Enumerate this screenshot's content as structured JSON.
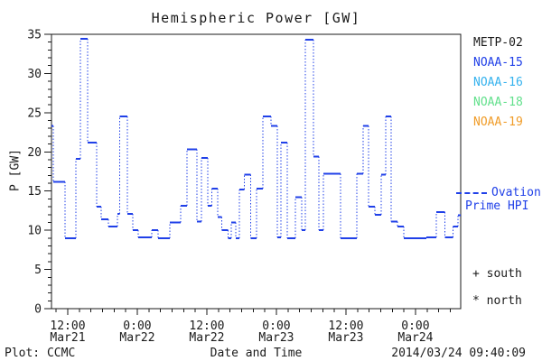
{
  "title": "Hemispheric Power [GW]",
  "footer": {
    "left": "Plot: CCMC",
    "right": "2014/03/24 09:40:09"
  },
  "legend": {
    "satellites": [
      {
        "label": "METP-02",
        "color": "#1a1a1a"
      },
      {
        "label": "NOAA-15",
        "color": "#2040e8"
      },
      {
        "label": "NOAA-16",
        "color": "#35b2ee"
      },
      {
        "label": "NOAA-18",
        "color": "#62e08c"
      },
      {
        "label": "NOAA-19",
        "color": "#f09c28"
      }
    ],
    "line_sample": {
      "label": "Ovation Prime HPI",
      "display_line1": "Ovation",
      "display_line2": "Prime HPI",
      "color": "#2040e8"
    },
    "markers": [
      {
        "symbol": "+",
        "label": "south"
      },
      {
        "symbol": "*",
        "label": "north"
      }
    ]
  },
  "chart_data": {
    "type": "line",
    "subtype": "step",
    "title": "Hemispheric Power [GW]",
    "xlabel": "Date and Time",
    "ylabel": "P [GW]",
    "grid": false,
    "legend_position": "right-outside",
    "ylim": [
      0,
      35
    ],
    "y_major_ticks": [
      0,
      5,
      10,
      15,
      20,
      25,
      30,
      35
    ],
    "y_minor_step": 1,
    "x_unit": "hours from 2014-03-21 00:00",
    "xlim_hours": [
      9.2,
      79.8
    ],
    "x_minor_step_hours": 2,
    "x_major_ticks": [
      {
        "hours": 12,
        "time": "12:00",
        "date": "Mar21"
      },
      {
        "hours": 24,
        "time": "0:00",
        "date": "Mar22"
      },
      {
        "hours": 36,
        "time": "12:00",
        "date": "Mar22"
      },
      {
        "hours": 48,
        "time": "0:00",
        "date": "Mar23"
      },
      {
        "hours": 60,
        "time": "12:00",
        "date": "Mar23"
      },
      {
        "hours": 72,
        "time": "0:00",
        "date": "Mar24"
      }
    ],
    "series": [
      {
        "name": "Ovation Prime HPI",
        "color": "#2040e8",
        "line_style": "solid horizontal steps, dotted vertical connectors",
        "points": [
          [
            9.2,
            23.3
          ],
          [
            9.5,
            16.2
          ],
          [
            11.5,
            9.0
          ],
          [
            13.4,
            19.1
          ],
          [
            14.2,
            34.4
          ],
          [
            15.4,
            21.2
          ],
          [
            17.0,
            13.0
          ],
          [
            17.8,
            11.4
          ],
          [
            19.0,
            10.5
          ],
          [
            20.6,
            12.1
          ],
          [
            21.0,
            24.5
          ],
          [
            22.3,
            12.1
          ],
          [
            23.2,
            10.0
          ],
          [
            24.2,
            9.1
          ],
          [
            26.5,
            10.0
          ],
          [
            27.6,
            9.0
          ],
          [
            29.6,
            11.0
          ],
          [
            31.5,
            13.1
          ],
          [
            32.6,
            20.3
          ],
          [
            34.3,
            11.1
          ],
          [
            35.1,
            19.2
          ],
          [
            36.2,
            13.1
          ],
          [
            36.9,
            15.3
          ],
          [
            37.9,
            11.7
          ],
          [
            38.6,
            10.0
          ],
          [
            39.7,
            9.0
          ],
          [
            40.2,
            11.0
          ],
          [
            41.0,
            9.0
          ],
          [
            41.6,
            15.2
          ],
          [
            42.5,
            17.1
          ],
          [
            43.6,
            9.0
          ],
          [
            44.6,
            15.3
          ],
          [
            45.7,
            24.5
          ],
          [
            47.1,
            23.3
          ],
          [
            48.2,
            9.1
          ],
          [
            48.8,
            21.2
          ],
          [
            49.9,
            9.0
          ],
          [
            51.3,
            14.2
          ],
          [
            52.4,
            10.0
          ],
          [
            53.0,
            34.3
          ],
          [
            54.4,
            19.4
          ],
          [
            55.3,
            10.0
          ],
          [
            56.1,
            17.2
          ],
          [
            59.1,
            9.0
          ],
          [
            61.9,
            17.2
          ],
          [
            63.0,
            23.3
          ],
          [
            63.9,
            13.0
          ],
          [
            65.0,
            12.0
          ],
          [
            66.1,
            17.1
          ],
          [
            66.9,
            24.5
          ],
          [
            67.8,
            11.1
          ],
          [
            68.9,
            10.5
          ],
          [
            70.0,
            9.0
          ],
          [
            73.9,
            9.1
          ],
          [
            75.6,
            12.3
          ],
          [
            77.1,
            9.1
          ],
          [
            78.5,
            10.5
          ],
          [
            79.3,
            11.9
          ]
        ]
      }
    ]
  }
}
